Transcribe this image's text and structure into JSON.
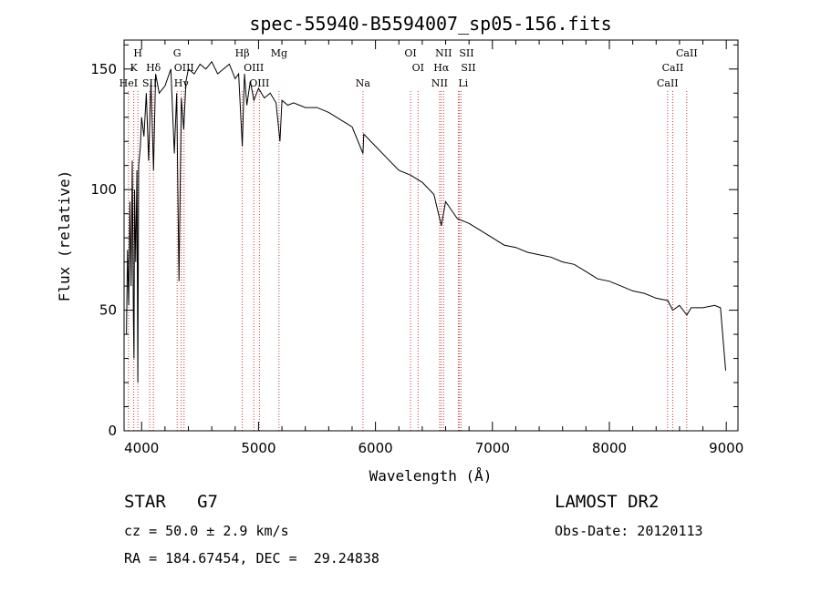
{
  "chart_data": {
    "type": "line",
    "title": "spec-55940-B5594007_sp05-156.fits",
    "xlabel": "Wavelength (Å)",
    "ylabel": "Flux (relative)",
    "xlim": [
      3850,
      9100
    ],
    "ylim": [
      0,
      162
    ],
    "xticks": [
      4000,
      5000,
      6000,
      7000,
      8000,
      9000
    ],
    "yticks": [
      0,
      50,
      100,
      150
    ],
    "grid": false,
    "series": [
      {
        "x": [
          3870,
          3880,
          3890,
          3900,
          3910,
          3920,
          3930,
          3935,
          3940,
          3950,
          3960,
          3968,
          3975,
          3990,
          4000,
          4020,
          4040,
          4060,
          4080,
          4102,
          4120,
          4150,
          4200,
          4250,
          4280,
          4300,
          4320,
          4340,
          4360,
          4380,
          4400,
          4450,
          4500,
          4550,
          4600,
          4650,
          4700,
          4750,
          4800,
          4830,
          4861,
          4880,
          4900,
          4930,
          4960,
          5000,
          5050,
          5100,
          5150,
          5183,
          5200,
          5250,
          5300,
          5400,
          5500,
          5600,
          5700,
          5800,
          5893,
          5900,
          6000,
          6100,
          6200,
          6300,
          6400,
          6500,
          6563,
          6600,
          6700,
          6800,
          6900,
          7000,
          7100,
          7200,
          7300,
          7400,
          7500,
          7600,
          7700,
          7800,
          7900,
          8000,
          8100,
          8200,
          8300,
          8400,
          8500,
          8542,
          8600,
          8662,
          8700,
          8800,
          8900,
          8950,
          8995
        ],
        "y": [
          40,
          75,
          52,
          95,
          60,
          112,
          45,
          30,
          100,
          70,
          108,
          20,
          110,
          118,
          130,
          122,
          140,
          112,
          145,
          108,
          148,
          140,
          143,
          150,
          115,
          140,
          62,
          138,
          125,
          145,
          150,
          148,
          152,
          150,
          153,
          148,
          150,
          152,
          146,
          148,
          118,
          148,
          135,
          145,
          137,
          142,
          138,
          140,
          136,
          120,
          137,
          135,
          136,
          134,
          134,
          132,
          129,
          126,
          115,
          123,
          118,
          113,
          108,
          106,
          103,
          98,
          85,
          95,
          88,
          86,
          83,
          80,
          77,
          76,
          74,
          73,
          72,
          70,
          69,
          66,
          63,
          62,
          60,
          58,
          57,
          55,
          54,
          50,
          52,
          48,
          51,
          51,
          52,
          51,
          25
        ]
      }
    ],
    "spectral_lines": [
      {
        "label": "H",
        "wl": 3968
      },
      {
        "label": "K",
        "wl": 3933
      },
      {
        "label": "HeI",
        "wl": 3888
      },
      {
        "label": "Hδ",
        "wl": 4101
      },
      {
        "label": "SII",
        "wl": 4069
      },
      {
        "label": "G",
        "wl": 4304
      },
      {
        "label": "OIII",
        "wl": 4363
      },
      {
        "label": "Hγ",
        "wl": 4340
      },
      {
        "label": "Hβ",
        "wl": 4861
      },
      {
        "label": "OIII",
        "wl": 4959
      },
      {
        "label": "OIII",
        "wl": 5007
      },
      {
        "label": "Mg",
        "wl": 5175
      },
      {
        "label": "Na",
        "wl": 5893
      },
      {
        "label": "OI",
        "wl": 6300
      },
      {
        "label": "OI",
        "wl": 6364
      },
      {
        "label": "NII",
        "wl": 6583
      },
      {
        "label": "SII",
        "wl": 6716
      },
      {
        "label": "Hα",
        "wl": 6563
      },
      {
        "label": "SII",
        "wl": 6731
      },
      {
        "label": "NII",
        "wl": 6548
      },
      {
        "label": "Li",
        "wl": 6708
      },
      {
        "label": "CaII",
        "wl": 8662
      },
      {
        "label": "CaII",
        "wl": 8542
      },
      {
        "label": "CaII",
        "wl": 8498
      }
    ],
    "line_color": "#000000",
    "marker_color": "#cc3333"
  },
  "info": {
    "classification": "STAR   G7",
    "cz": "cz = 50.0 ± 2.9 km/s",
    "radec": "RA = 184.67454, DEC =  29.24838",
    "survey": "LAMOST DR2",
    "obs_date": "Obs-Date: 20120113"
  }
}
